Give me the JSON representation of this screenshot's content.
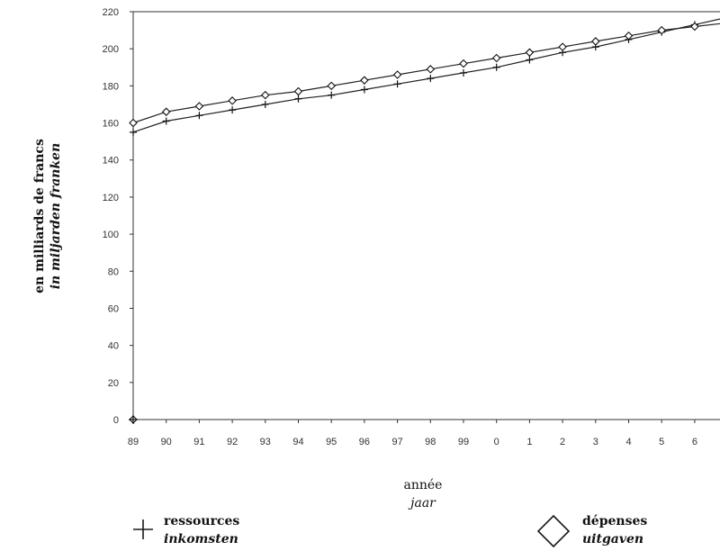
{
  "chart_data": {
    "type": "line",
    "title": "",
    "ylabel": [
      "en milliards de francs",
      "in miljarden franken"
    ],
    "xlabel": [
      "année",
      "jaar"
    ],
    "categories": [
      "89",
      "90",
      "91",
      "92",
      "93",
      "94",
      "95",
      "96",
      "97",
      "98",
      "99",
      "0",
      "1",
      "2",
      "3",
      "4",
      "5",
      "6"
    ],
    "ylim": [
      0,
      220
    ],
    "yticks": [
      0,
      20,
      40,
      60,
      80,
      100,
      120,
      140,
      160,
      180,
      200,
      220
    ],
    "grid": false,
    "series": [
      {
        "name": [
          "ressources",
          "inkomsten"
        ],
        "marker": "plus",
        "values": [
          155,
          161,
          164,
          167,
          170,
          173,
          175,
          178,
          181,
          184,
          187,
          190,
          194,
          198,
          201,
          205,
          209,
          213
        ]
      },
      {
        "name": [
          "dépenses",
          "uitgaven"
        ],
        "marker": "diamond",
        "values": [
          160,
          166,
          169,
          172,
          175,
          177,
          180,
          183,
          186,
          189,
          192,
          195,
          198,
          201,
          204,
          207,
          210,
          212
        ]
      }
    ],
    "legend_position": "bottom"
  }
}
